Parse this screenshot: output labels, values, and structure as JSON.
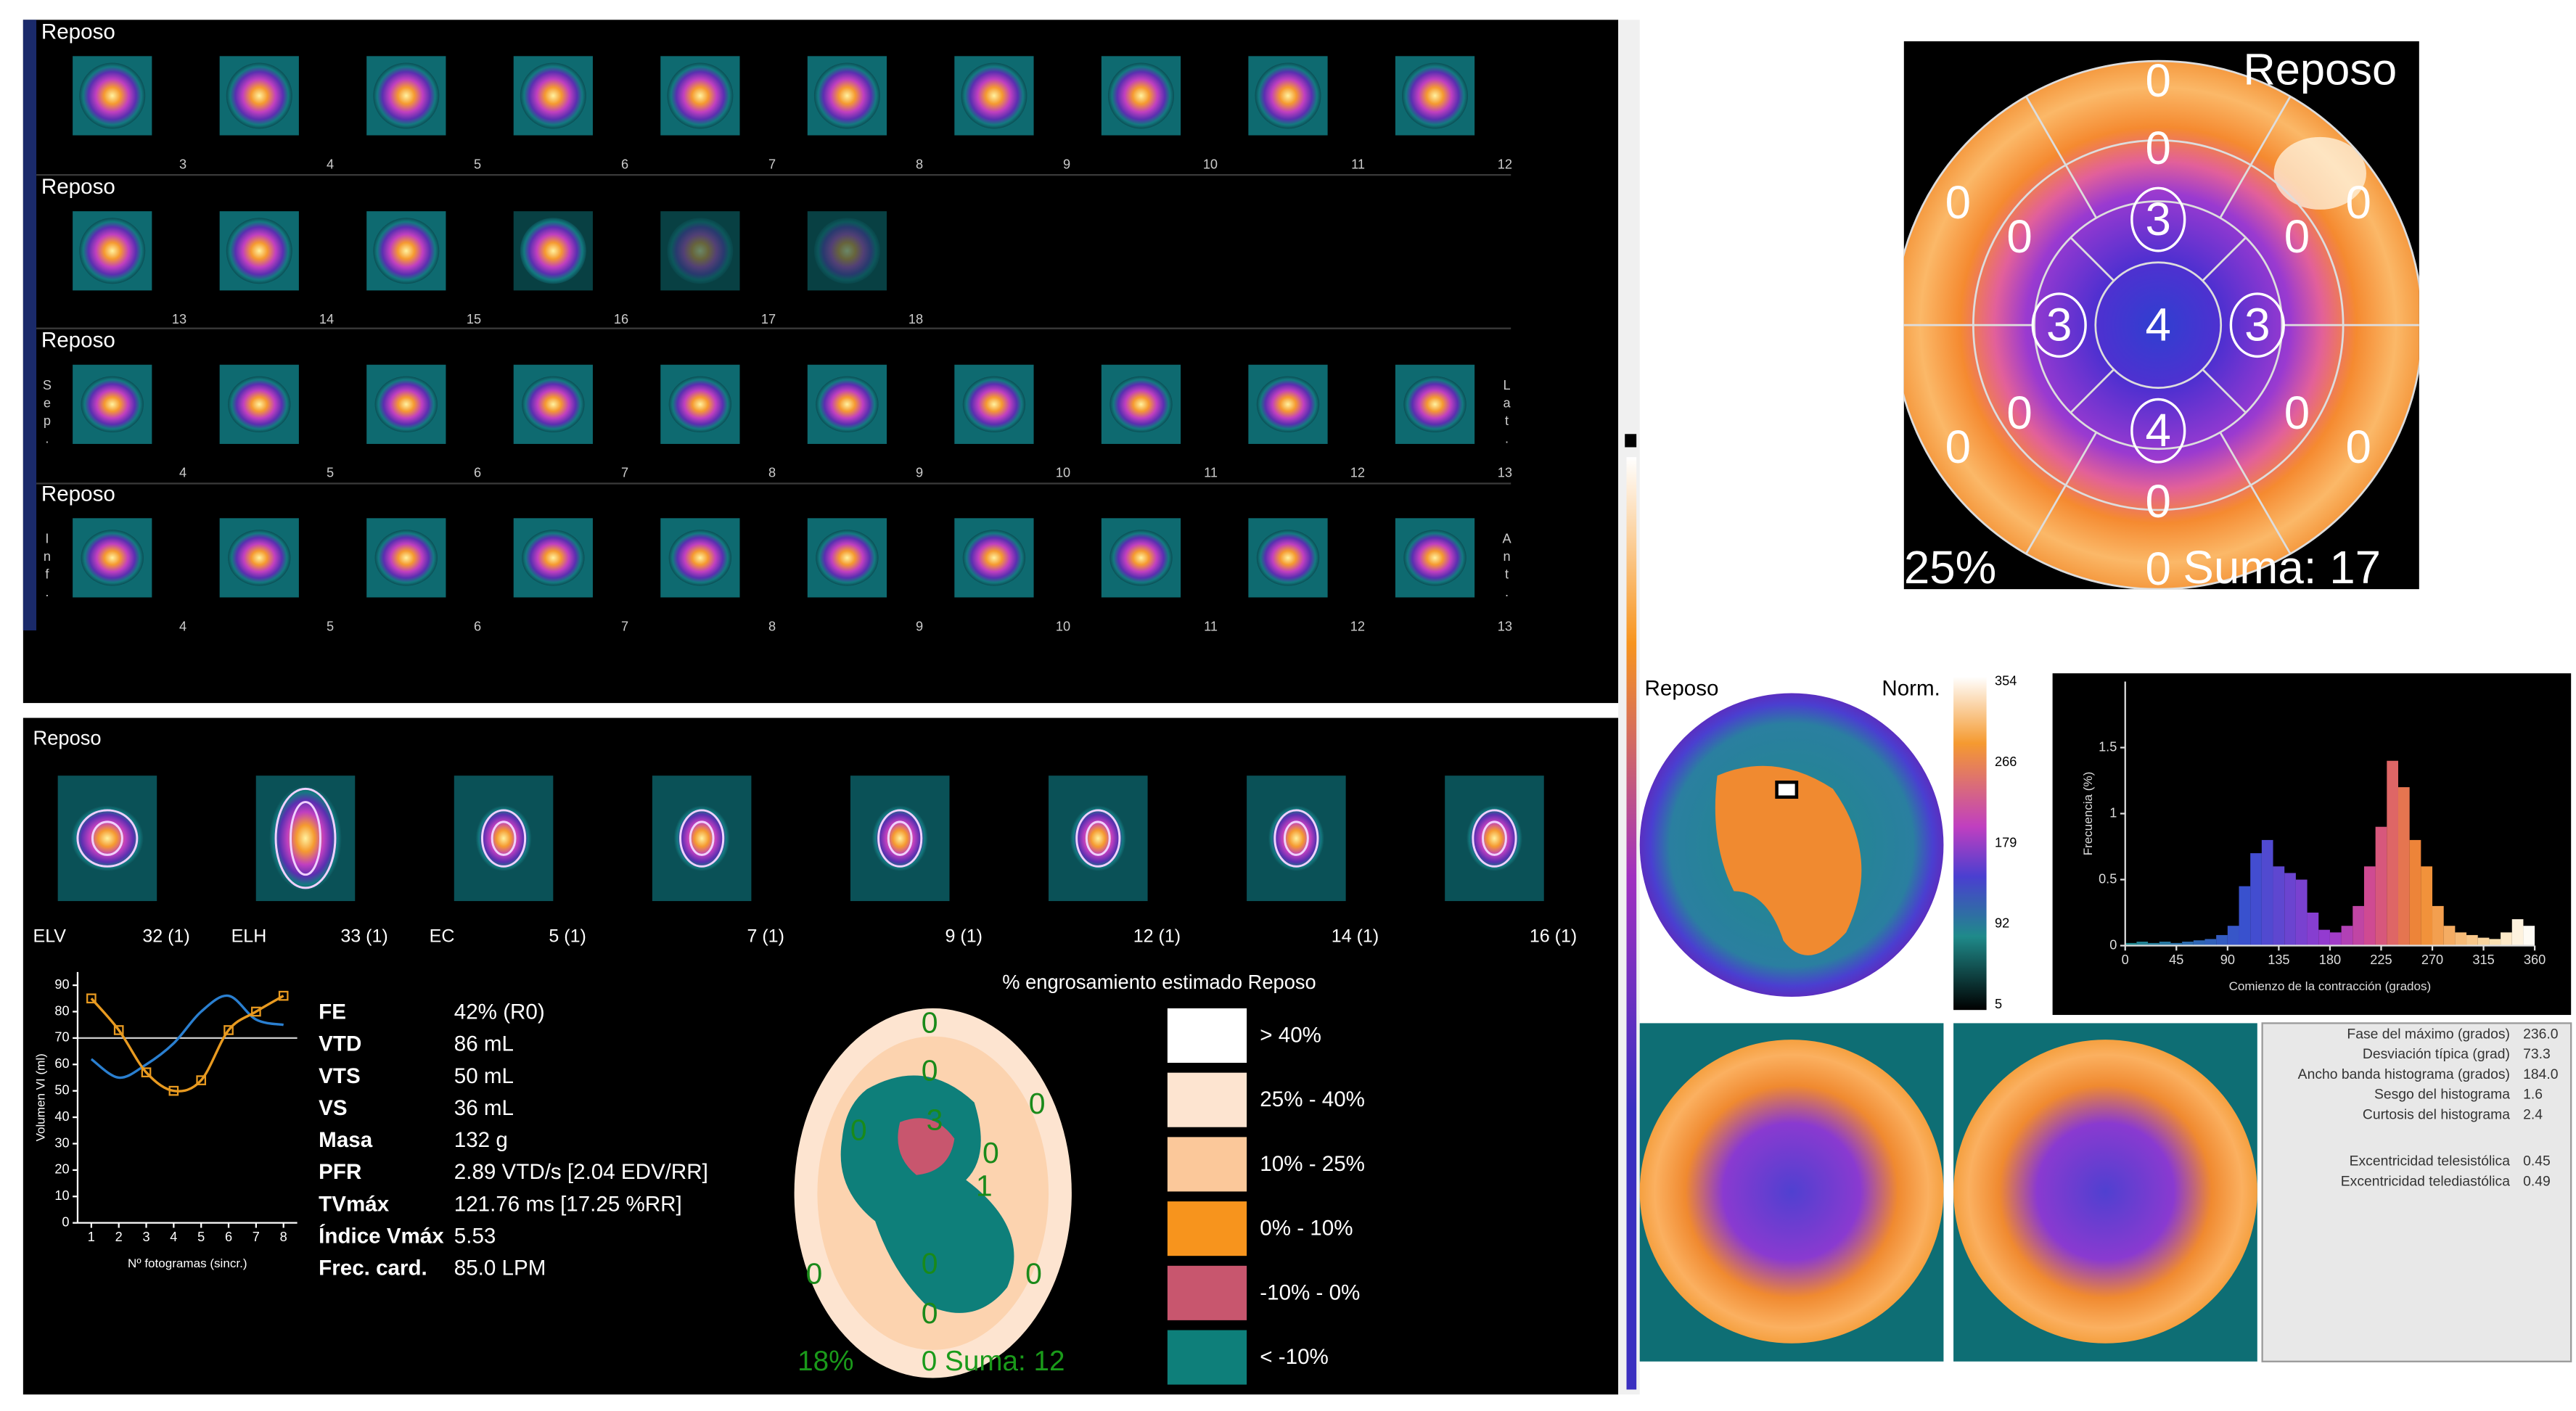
{
  "slice_rows": [
    {
      "label": "Reposo",
      "frames": [
        "3",
        "4",
        "5",
        "6",
        "7",
        "8",
        "9",
        "10",
        "11",
        "12"
      ]
    },
    {
      "label": "Reposo",
      "frames": [
        "13",
        "14",
        "15",
        "16",
        "17",
        "18"
      ]
    },
    {
      "label": "Reposo",
      "frames": [
        "4",
        "5",
        "6",
        "7",
        "8",
        "9",
        "10",
        "11",
        "12",
        "13"
      ],
      "left": "Sep.",
      "right": "Lat."
    },
    {
      "label": "Reposo",
      "frames": [
        "4",
        "5",
        "6",
        "7",
        "8",
        "9",
        "10",
        "11",
        "12",
        "13"
      ],
      "left": "Inf.",
      "right": "Ant."
    }
  ],
  "perfusion_map": {
    "title": "Reposo",
    "basal": [
      "0",
      "0",
      "0",
      "0",
      "0",
      "0"
    ],
    "mid": [
      "0",
      "0",
      "0",
      "0",
      "0",
      "0"
    ],
    "apical": [
      "3",
      "3",
      "4",
      "3"
    ],
    "apex": "4",
    "extent": "25%",
    "sum": "Suma: 17"
  },
  "gated": {
    "title": "Reposo",
    "views": [
      {
        "name": "ELV",
        "frame": "32 (1)"
      },
      {
        "name": "ELH",
        "frame": "33 (1)"
      },
      {
        "name": "EC",
        "frame": "5 (1)"
      },
      {
        "frame": "7 (1)"
      },
      {
        "frame": "9 (1)"
      },
      {
        "frame": "12 (1)"
      },
      {
        "frame": "14 (1)"
      },
      {
        "frame": "16 (1)"
      }
    ]
  },
  "function_table": {
    "rows": [
      [
        "FE",
        "42% (R0)"
      ],
      [
        "VTD",
        "86 mL"
      ],
      [
        "VTS",
        "50 mL"
      ],
      [
        "VS",
        "36 mL"
      ],
      [
        "Masa",
        "132 g"
      ],
      [
        "PFR",
        "2.89 VTD/s [2.04 EDV/RR]"
      ],
      [
        "TVmáx",
        "121.76 ms [17.25 %RR]"
      ],
      [
        "Índice Vmáx",
        "5.53"
      ],
      [
        "Frec. card.",
        "85.0 LPM"
      ]
    ]
  },
  "thickening": {
    "title": "% engrosamiento estimado Reposo",
    "segments": [
      "0",
      "0",
      "0",
      "0",
      "0",
      "0",
      "0",
      "3",
      "1",
      "0",
      "0"
    ],
    "extent": "18%",
    "sum": "0 Suma: 12",
    "legend": [
      {
        "label": "> 40%",
        "color": "#ffffff"
      },
      {
        "label": "25% - 40%",
        "color": "#fde4d0"
      },
      {
        "label": "10% - 25%",
        "color": "#fbc89a"
      },
      {
        "label": "0% - 10%",
        "color": "#f7941d"
      },
      {
        "label": "-10% - 0%",
        "color": "#c8566e"
      },
      {
        "label": "< -10%",
        "color": "#0e7f7a"
      }
    ]
  },
  "phase": {
    "title": "Reposo",
    "norm": "Norm.",
    "colorbar_ticks": [
      "354",
      "266",
      "179",
      "92",
      "5"
    ],
    "stats": [
      [
        "Fase del máximo (grados)",
        "236.0"
      ],
      [
        "Desviación típica (grad)",
        "73.3"
      ],
      [
        "Ancho banda histograma (grados)",
        "184.0"
      ],
      [
        "Sesgo del histograma",
        "1.6"
      ],
      [
        "Curtosis del histograma",
        "2.4"
      ],
      [
        "Excentricidad telesistólica",
        "0.45"
      ],
      [
        "Excentricidad telediastólica",
        "0.49"
      ]
    ]
  },
  "chart_data": [
    {
      "type": "line",
      "x": [
        1,
        2,
        3,
        4,
        5,
        6,
        7,
        8
      ],
      "x_label": "Nº fotogramas (sincr.)",
      "y_label": "Volumen VI (ml)",
      "series": [
        {
          "color": "#2a7fd0",
          "values": [
            62,
            55,
            60,
            68,
            80,
            86,
            77,
            75
          ]
        },
        {
          "color": "#e89a20",
          "values": [
            85,
            73,
            57,
            50,
            54,
            73,
            80,
            86
          ],
          "markers": true
        }
      ],
      "reference_line": 70,
      "xlim": [
        0.5,
        8.5
      ],
      "ylim": [
        0,
        95
      ],
      "xticks": [
        1,
        2,
        3,
        4,
        5,
        6,
        7,
        8
      ],
      "yticks": [
        0,
        10,
        20,
        30,
        40,
        50,
        60,
        70,
        80,
        90
      ]
    },
    {
      "type": "histogram",
      "x_label": "Comienzo de la contracción (grados)",
      "y_label": "Frecuencia (%)",
      "bins": [
        0,
        10,
        20,
        30,
        40,
        50,
        60,
        70,
        80,
        90,
        100,
        110,
        120,
        130,
        140,
        150,
        160,
        170,
        180,
        190,
        200,
        210,
        220,
        230,
        240,
        250,
        260,
        270,
        280,
        290,
        300,
        310,
        320,
        330,
        340,
        350,
        360
      ],
      "values": [
        0.02,
        0.03,
        0.02,
        0.03,
        0.02,
        0.03,
        0.04,
        0.05,
        0.08,
        0.15,
        0.45,
        0.7,
        0.8,
        0.6,
        0.55,
        0.5,
        0.25,
        0.12,
        0.1,
        0.15,
        0.3,
        0.6,
        0.9,
        1.4,
        1.2,
        0.8,
        0.6,
        0.3,
        0.15,
        0.1,
        0.08,
        0.06,
        0.05,
        0.1,
        0.2,
        0.15
      ],
      "xlim": [
        0,
        360
      ],
      "ylim": [
        0,
        2
      ],
      "xticks": [
        0,
        45,
        90,
        135,
        180,
        225,
        270,
        315,
        360
      ],
      "yticks": [
        0,
        0.5,
        1,
        1.5
      ]
    }
  ]
}
